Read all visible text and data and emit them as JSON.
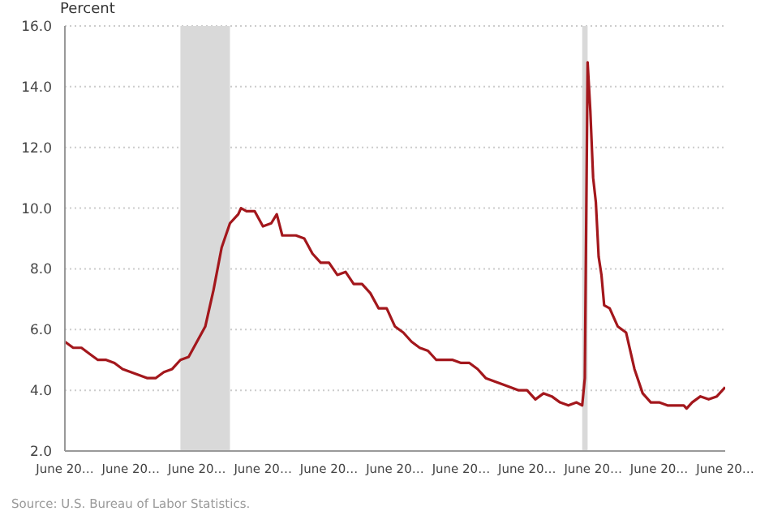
{
  "chart_data": {
    "type": "line",
    "ylabel": "Percent",
    "annotations": [
      "Source: U.S. Bureau of Labor Statistics."
    ],
    "x": [
      "2004-06",
      "2004-09",
      "2004-12",
      "2005-03",
      "2005-06",
      "2005-09",
      "2005-12",
      "2006-03",
      "2006-06",
      "2006-09",
      "2006-12",
      "2007-03",
      "2007-06",
      "2007-09",
      "2007-12",
      "2008-03",
      "2008-06",
      "2008-09",
      "2008-12",
      "2009-03",
      "2009-06",
      "2009-09",
      "2009-10",
      "2009-12",
      "2010-03",
      "2010-06",
      "2010-09",
      "2010-11",
      "2011-01",
      "2011-06",
      "2011-09",
      "2011-12",
      "2012-03",
      "2012-06",
      "2012-09",
      "2012-12",
      "2013-03",
      "2013-06",
      "2013-09",
      "2013-12",
      "2014-03",
      "2014-06",
      "2014-09",
      "2014-12",
      "2015-03",
      "2015-06",
      "2015-09",
      "2015-12",
      "2016-03",
      "2016-06",
      "2016-09",
      "2016-12",
      "2017-03",
      "2017-06",
      "2017-09",
      "2017-12",
      "2018-03",
      "2018-06",
      "2018-09",
      "2018-12",
      "2019-03",
      "2019-06",
      "2019-09",
      "2019-12",
      "2020-02",
      "2020-03",
      "2020-04",
      "2020-05",
      "2020-06",
      "2020-07",
      "2020-08",
      "2020-09",
      "2020-10",
      "2020-12",
      "2021-03",
      "2021-06",
      "2021-09",
      "2021-12",
      "2022-03",
      "2022-06",
      "2022-09",
      "2022-12",
      "2023-03",
      "2023-04",
      "2023-06",
      "2023-09",
      "2023-12",
      "2024-03",
      "2024-06"
    ],
    "series": [
      {
        "color": "#a3171c",
        "values": [
          5.6,
          5.4,
          5.4,
          5.2,
          5.0,
          5.0,
          4.9,
          4.7,
          4.6,
          4.5,
          4.4,
          4.4,
          4.6,
          4.7,
          5.0,
          5.1,
          5.6,
          6.1,
          7.3,
          8.7,
          9.5,
          9.8,
          10.0,
          9.9,
          9.9,
          9.4,
          9.5,
          9.8,
          9.1,
          9.1,
          9.0,
          8.5,
          8.2,
          8.2,
          7.8,
          7.9,
          7.5,
          7.5,
          7.2,
          6.7,
          6.7,
          6.1,
          5.9,
          5.6,
          5.4,
          5.3,
          5.0,
          5.0,
          5.0,
          4.9,
          4.9,
          4.7,
          4.4,
          4.3,
          4.2,
          4.1,
          4.0,
          4.0,
          3.7,
          3.9,
          3.8,
          3.6,
          3.5,
          3.6,
          3.5,
          4.4,
          14.8,
          13.2,
          11.0,
          10.2,
          8.4,
          7.8,
          6.8,
          6.7,
          6.1,
          5.9,
          4.7,
          3.9,
          3.6,
          3.6,
          3.5,
          3.5,
          3.5,
          3.4,
          3.6,
          3.8,
          3.7,
          3.8,
          4.1
        ]
      }
    ],
    "xlim": [
      "2004-06",
      "2024-06"
    ],
    "xticks": [
      {
        "value": "2004-06",
        "label": "June 20…"
      },
      {
        "value": "2006-06",
        "label": "June 20…"
      },
      {
        "value": "2008-06",
        "label": "June 20…"
      },
      {
        "value": "2010-06",
        "label": "June 20…"
      },
      {
        "value": "2012-06",
        "label": "June 20…"
      },
      {
        "value": "2014-06",
        "label": "June 20…"
      },
      {
        "value": "2016-06",
        "label": "June 20…"
      },
      {
        "value": "2018-06",
        "label": "June 20…"
      },
      {
        "value": "2020-06",
        "label": "June 20…"
      },
      {
        "value": "2022-06",
        "label": "June 20…"
      },
      {
        "value": "2024-06",
        "label": "June 20…"
      }
    ],
    "ylim": [
      2,
      16
    ],
    "yticks": [
      {
        "value": 2,
        "label": "2.0"
      },
      {
        "value": 4,
        "label": "4.0"
      },
      {
        "value": 6,
        "label": "6.0"
      },
      {
        "value": 8,
        "label": "8.0"
      },
      {
        "value": 10,
        "label": "10.0"
      },
      {
        "value": 12,
        "label": "12.0"
      },
      {
        "value": 14,
        "label": "14.0"
      },
      {
        "value": 16,
        "label": "16.0"
      }
    ],
    "grid": "y",
    "bands": [
      {
        "axis": "x",
        "from": "2007-12",
        "to": "2009-06",
        "color": "#d9d9d9"
      },
      {
        "axis": "x",
        "from": "2020-02",
        "to": "2020-04",
        "color": "#d9d9d9"
      }
    ]
  }
}
